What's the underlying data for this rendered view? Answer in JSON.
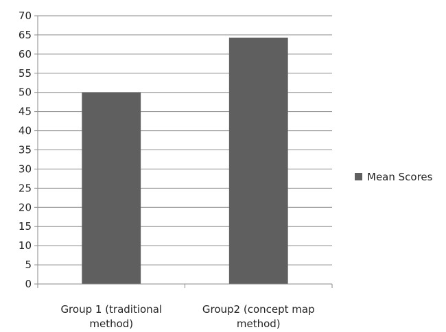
{
  "chart_data": {
    "type": "bar",
    "categories": [
      [
        "Group 1 (traditional",
        "method)"
      ],
      [
        "Group2 (concept map",
        "method)"
      ]
    ],
    "series": [
      {
        "name": "Mean Scores",
        "values": [
          50,
          64.3
        ],
        "color": "#5f5f5f"
      }
    ],
    "ylim": [
      0,
      70
    ],
    "ytick_step": 5,
    "yticks": [
      "0",
      "5",
      "10",
      "15",
      "20",
      "25",
      "30",
      "35",
      "40",
      "45",
      "50",
      "55",
      "60",
      "65",
      "70"
    ],
    "grid": true,
    "legend_position": "right",
    "title": "",
    "xlabel": "",
    "ylabel": ""
  }
}
